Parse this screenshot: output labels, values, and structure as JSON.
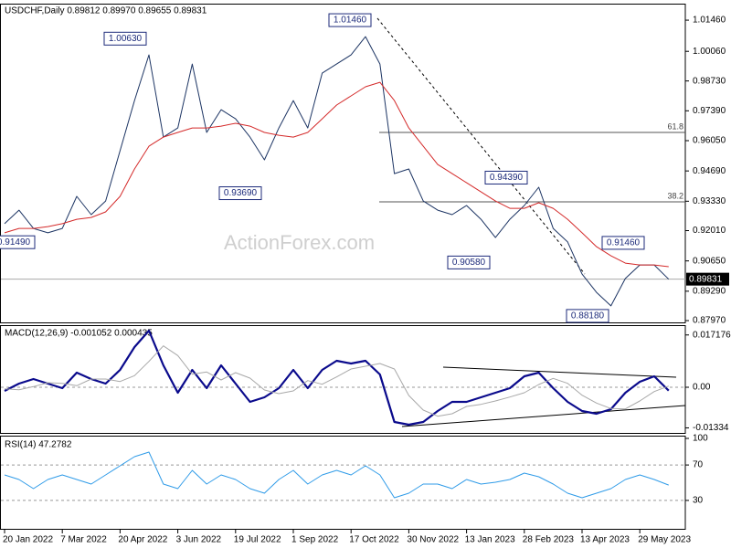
{
  "chart_data": [
    {
      "type": "line",
      "title": "USDCHF,Daily  0.89812 0.89970 0.89655 0.89831",
      "watermark": "ActionForex.com",
      "ylim": [
        0.8793,
        1.0216
      ],
      "yticks": [
        {
          "value": 1.0146,
          "label": "1.01460"
        },
        {
          "value": 1.0006,
          "label": "1.00060"
        },
        {
          "value": 0.9873,
          "label": "0.98730"
        },
        {
          "value": 0.9739,
          "label": "0.97390"
        },
        {
          "value": 0.9605,
          "label": "0.96050"
        },
        {
          "value": 0.9469,
          "label": "0.94690"
        },
        {
          "value": 0.9333,
          "label": "0.93330"
        },
        {
          "value": 0.9201,
          "label": "0.92010"
        },
        {
          "value": 0.9065,
          "label": "0.90650"
        },
        {
          "value": 0.8929,
          "label": "0.89290"
        },
        {
          "value": 0.8797,
          "label": "0.87970"
        }
      ],
      "series": [
        {
          "color": "#1c3463",
          "width": 1,
          "values": [
            0.9232,
            0.9293,
            0.9211,
            0.9191,
            0.9211,
            0.9355,
            0.9273,
            0.9334,
            0.956,
            0.9785,
            0.999,
            0.9621,
            0.9662,
            0.9949,
            0.9642,
            0.9744,
            0.9703,
            0.9621,
            0.9519,
            0.9662,
            0.9785,
            0.9662,
            0.9908,
            0.9949,
            0.999,
            1.0072,
            0.9949,
            0.9457,
            0.9478,
            0.9334,
            0.9293,
            0.9273,
            0.9314,
            0.9252,
            0.917,
            0.9252,
            0.9314,
            0.9396,
            0.9211,
            0.915,
            0.9006,
            0.8924,
            0.8863,
            0.8986,
            0.9047,
            0.9047,
            0.8983
          ]
        },
        {
          "color": "#d42a2a",
          "width": 1,
          "values": [
            0.9191,
            0.9211,
            0.9211,
            0.9219,
            0.9232,
            0.9252,
            0.926,
            0.9285,
            0.9355,
            0.9478,
            0.958,
            0.9621,
            0.9642,
            0.9662,
            0.9662,
            0.967,
            0.9683,
            0.967,
            0.9642,
            0.9629,
            0.9621,
            0.9642,
            0.9703,
            0.9765,
            0.9806,
            0.9847,
            0.9867,
            0.9785,
            0.9662,
            0.958,
            0.9498,
            0.9457,
            0.9416,
            0.9375,
            0.9334,
            0.9301,
            0.9301,
            0.9326,
            0.9301,
            0.9252,
            0.9191,
            0.9129,
            0.9088,
            0.9055,
            0.9047,
            0.9047,
            0.9039
          ]
        }
      ],
      "annotations": [
        {
          "value": 1.0063,
          "label": "1.00630"
        },
        {
          "value": 1.0146,
          "label": "1.01460"
        },
        {
          "value": 0.9369,
          "label": "0.93690"
        },
        {
          "value": 0.9058,
          "label": "0.90580"
        },
        {
          "value": 0.9439,
          "label": "0.94390"
        },
        {
          "value": 0.9146,
          "label": "0.91460"
        },
        {
          "value": 0.8818,
          "label": "0.88180"
        },
        {
          "value": 0.9149,
          "label": "0.91490"
        }
      ],
      "fib_levels": [
        {
          "value": 0.9642,
          "label": "61.8"
        },
        {
          "value": 0.933,
          "label": "38.2"
        }
      ],
      "last": {
        "value": 0.89831,
        "label": "0.89831"
      }
    },
    {
      "type": "line",
      "title": "MACD(12,26,9) -0.001052 0.000435",
      "ylim": [
        -0.0147,
        0.0198
      ],
      "yticks": [
        0.017176,
        {
          "value": 0,
          "label": "0.00"
        },
        -0.01334
      ],
      "levels": [
        0
      ],
      "series": [
        {
          "color": "#0a0a8c",
          "width": 2.2,
          "values": [
            -0.0012,
            0.0012,
            0.0027,
            0.0012,
            -0.0003,
            0.0048,
            0.0027,
            0.0012,
            0.0057,
            0.0132,
            0.0186,
            0.0072,
            -0.0018,
            0.0057,
            -0.0003,
            0.0072,
            0.0012,
            -0.0048,
            -0.0033,
            -0.0003,
            0.0057,
            -0.0003,
            0.0057,
            0.0087,
            0.0078,
            0.0087,
            0.0042,
            -0.0114,
            -0.0123,
            -0.0114,
            -0.0078,
            -0.0048,
            -0.0048,
            -0.0033,
            -0.0018,
            -0.0003,
            0.0036,
            0.0048,
            -0.0003,
            -0.0048,
            -0.0078,
            -0.0087,
            -0.0072,
            -0.0018,
            0.0018,
            0.0036,
            -0.0011
          ]
        },
        {
          "color": "#a8a8a8",
          "width": 1,
          "values": [
            -0.0005,
            -0.0008,
            0.0002,
            0.0015,
            0.0013,
            0.0005,
            0.0027,
            0.0027,
            0.0019,
            0.0038,
            0.0085,
            0.0136,
            0.0104,
            0.0043,
            0.005,
            0.0024,
            0.0048,
            0.003,
            -0.0009,
            -0.0021,
            -0.0012,
            0.0022,
            0.001,
            0.0034,
            0.006,
            0.0069,
            0.0078,
            0.006,
            -0.0027,
            -0.0075,
            -0.0095,
            -0.0087,
            -0.0063,
            -0.0056,
            -0.0045,
            -0.0032,
            -0.0018,
            0.0009,
            0.0029,
            0.0013,
            -0.0026,
            -0.0052,
            -0.007,
            -0.0071,
            -0.0045,
            -0.0014,
            0.0004
          ]
        }
      ]
    },
    {
      "type": "line",
      "title": "RSI(14) 47.2782",
      "ylim": [
        0,
        100
      ],
      "yticks": [
        100,
        70,
        30
      ],
      "levels": [
        70,
        30
      ],
      "categories": [
        "20 Jan 2022",
        null,
        null,
        null,
        "7 Mar 2022",
        null,
        null,
        null,
        "20 Apr 2022",
        null,
        null,
        null,
        "3 Jun 2022",
        null,
        null,
        null,
        "19 Jul 2022",
        null,
        null,
        null,
        "1 Sep 2022",
        null,
        null,
        null,
        "17 Oct 2022",
        null,
        null,
        null,
        "30 Nov 2022",
        null,
        null,
        null,
        "13 Jan 2023",
        null,
        null,
        null,
        "28 Feb 2023",
        null,
        null,
        null,
        "13 Apr 2023",
        null,
        null,
        null,
        "29 May 2023",
        null,
        null
      ],
      "series": [
        {
          "color": "#2f9be8",
          "width": 1,
          "values": [
            58.8,
            53.6,
            43.3,
            53.6,
            58.8,
            53.6,
            48.5,
            58.8,
            69.1,
            79.4,
            84.5,
            48.5,
            43.3,
            63.9,
            48.5,
            58.8,
            53.6,
            43.3,
            38.1,
            53.6,
            63.9,
            48.5,
            58.8,
            63.9,
            58.8,
            69.1,
            58.8,
            33.0,
            38.1,
            48.5,
            48.5,
            43.3,
            53.6,
            48.5,
            50.5,
            53.6,
            60.8,
            56.7,
            48.5,
            38.1,
            33.0,
            38.1,
            43.3,
            53.6,
            58.8,
            53.6,
            47.3
          ]
        }
      ]
    }
  ]
}
